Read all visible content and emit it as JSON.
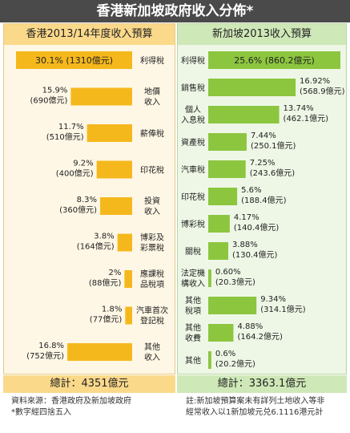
{
  "title": "香港新加坡政府收入分佈*",
  "chart_data": [
    {
      "type": "bar",
      "title": "香港2013/14年度收入預算",
      "categories": [
        "利得稅",
        "地價收入",
        "薪俸稅",
        "印花稅",
        "投資收入",
        "博彩及彩票稅",
        "應課稅品稅項",
        "汽車首次登記稅",
        "其他收入"
      ],
      "category_lines": [
        [
          "利得稅"
        ],
        [
          "地價",
          "收入"
        ],
        [
          "薪俸稅"
        ],
        [
          "印花稅"
        ],
        [
          "投資",
          "收入"
        ],
        [
          "博彩及",
          "彩票稅"
        ],
        [
          "應課稅",
          "品稅項"
        ],
        [
          "汽車首次",
          "登記稅"
        ],
        [
          "其他",
          "收入"
        ]
      ],
      "values": [
        30.1,
        15.9,
        11.7,
        9.2,
        8.3,
        3.8,
        2.0,
        1.8,
        16.8
      ],
      "pct_labels": [
        "30.1%",
        "15.9%",
        "11.7%",
        "9.2%",
        "8.3%",
        "3.8%",
        "2%",
        "1.8%",
        "16.8%"
      ],
      "amount_labels": [
        "(1310億元)",
        "(690億元)",
        "(510億元)",
        "(400億元)",
        "(360億元)",
        "(164億元)",
        "(88億元)",
        "(77億元)",
        "(752億元)"
      ],
      "total": "總計：4351億元",
      "color": "#f5b81c"
    },
    {
      "type": "bar",
      "title": "新加坡2013收入預算",
      "categories": [
        "利得稅",
        "銷售稅",
        "個人入息稅",
        "資產稅",
        "汽車稅",
        "印花稅",
        "博彩稅",
        "關稅",
        "法定機構收入",
        "其他稅項",
        "其他收費",
        "其他"
      ],
      "category_lines": [
        [
          "利得稅"
        ],
        [
          "銷售稅"
        ],
        [
          "個人",
          "入息稅"
        ],
        [
          "資產稅"
        ],
        [
          "汽車稅"
        ],
        [
          "印花稅"
        ],
        [
          "博彩稅"
        ],
        [
          "關稅"
        ],
        [
          "法定機",
          "構收入"
        ],
        [
          "其他",
          "稅項"
        ],
        [
          "其他",
          "收費"
        ],
        [
          "其他"
        ]
      ],
      "values": [
        25.6,
        16.92,
        13.74,
        7.44,
        7.25,
        5.6,
        4.17,
        3.88,
        0.6,
        9.34,
        4.88,
        0.6
      ],
      "pct_labels": [
        "25.6%",
        "16.92%",
        "13.74%",
        "7.44%",
        "7.25%",
        "5.6%",
        "4.17%",
        "3.88%",
        "0.60%",
        "9.34%",
        "4.88%",
        "0.6%"
      ],
      "amount_labels": [
        "(860.2億元)",
        "(568.9億元)",
        "(462.1億元)",
        "(250.1億元)",
        "(243.6億元)",
        "(188.4億元)",
        "(140.4億元)",
        "(130.4億元)",
        "(20.3億元)",
        "(314.1億元)",
        "(164.2億元)",
        "(20.2億元)"
      ],
      "total": "總計：3363.1億元",
      "color": "#8cc63f"
    }
  ],
  "notes": {
    "hk_source": "資料來源：香港政府及新加坡政府",
    "hk_rounding": "*數字經四捨五入",
    "sg_note_1": "註:新加坡預算案未有詳列土地收入等非",
    "sg_note_2": "經常收入以1新加坡元兑6.1116港元計"
  }
}
